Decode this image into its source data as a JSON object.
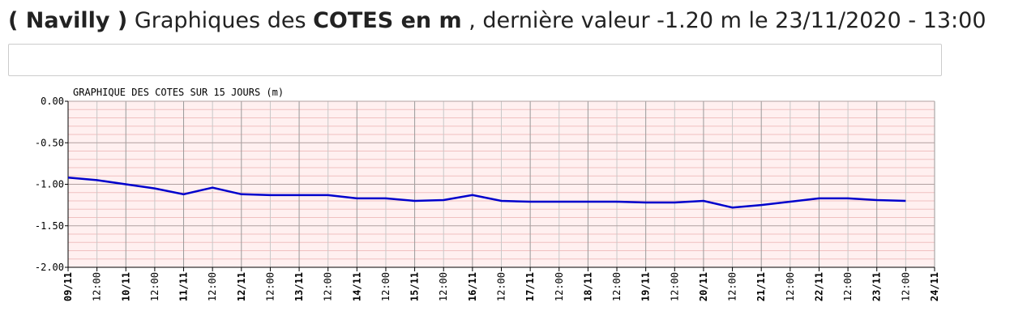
{
  "header": {
    "station": "( Navilly )",
    "prefix": "Graphiques des",
    "unit": "COTES en m",
    "suffix": ", dernière valeur -1.20 m le 23/11/2020 - 13:00"
  },
  "chart_data": {
    "type": "line",
    "title": "GRAPHIQUE DES COTES SUR 15 JOURS (m)",
    "categories": [
      "09/11",
      "12:00",
      "10/11",
      "12:00",
      "11/11",
      "12:00",
      "12/11",
      "12:00",
      "13/11",
      "12:00",
      "14/11",
      "12:00",
      "15/11",
      "12:00",
      "16/11",
      "12:00",
      "17/11",
      "12:00",
      "18/11",
      "12:00",
      "19/11",
      "12:00",
      "20/11",
      "12:00",
      "21/11",
      "12:00",
      "22/11",
      "12:00",
      "23/11",
      "12:00",
      "24/11"
    ],
    "series": [
      {
        "name": "Cote",
        "color": "#0000cc",
        "values": [
          -0.92,
          -0.95,
          -1.0,
          -1.05,
          -1.12,
          -1.04,
          -1.12,
          -1.13,
          -1.13,
          -1.13,
          -1.17,
          -1.17,
          -1.2,
          -1.19,
          -1.13,
          -1.2,
          -1.21,
          -1.21,
          -1.21,
          -1.21,
          -1.22,
          -1.22,
          -1.2,
          -1.28,
          -1.25,
          -1.21,
          -1.17,
          -1.17,
          -1.19,
          -1.2,
          null
        ]
      }
    ],
    "ylim": [
      -2,
      0
    ],
    "yticks": [
      {
        "value": 0,
        "label": "0.00"
      },
      {
        "value": -0.5,
        "label": "-0.50"
      },
      {
        "value": -1,
        "label": "-1.00"
      },
      {
        "value": -1.5,
        "label": "-1.50"
      },
      {
        "value": -2,
        "label": "-2.00"
      }
    ],
    "yminorticks": [
      -0.1,
      -0.2,
      -0.3,
      -0.4,
      -0.6,
      -0.7,
      -0.8,
      -0.9,
      -1.1,
      -1.2,
      -1.3,
      -1.4,
      -1.6,
      -1.7,
      -1.8,
      -1.9
    ],
    "grid": true,
    "background": "#fff0f0",
    "grid_color": "#f0c0c0"
  }
}
